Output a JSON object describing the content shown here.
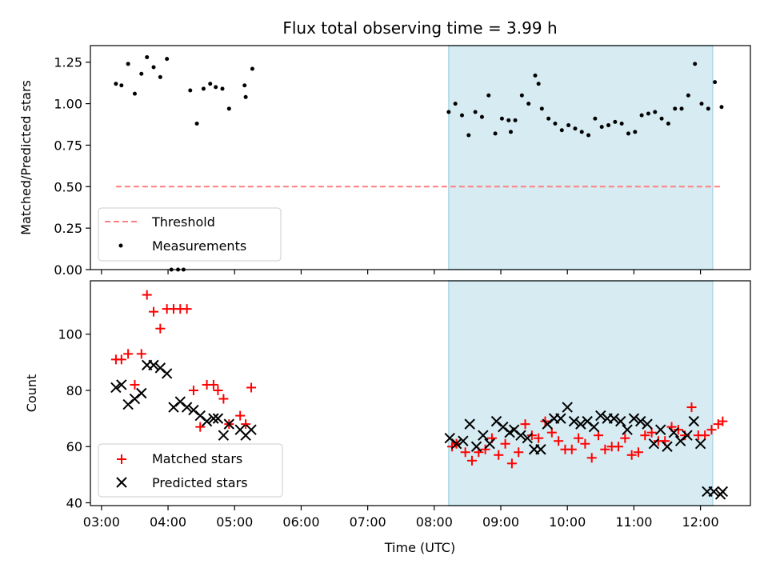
{
  "chart_data": [
    {
      "type": "scatter",
      "title": "Flux total observing time = 3.99 h",
      "xlabel": "",
      "ylabel": "Matched/Predicted stars",
      "xlim": [
        "02:50",
        "12:45"
      ],
      "ylim": [
        0,
        1.35
      ],
      "yticks": [
        "0.00",
        "0.25",
        "0.50",
        "0.75",
        "1.00",
        "1.25"
      ],
      "shaded_span": [
        "08:13",
        "12:11"
      ],
      "legend_position": "lower-left",
      "series": [
        {
          "name": "Threshold",
          "kind": "dashed-line",
          "color": "#ff7f7f",
          "x": [
            "03:13",
            "12:18"
          ],
          "y": [
            0.5,
            0.5
          ]
        },
        {
          "name": "Measurements",
          "kind": "dots",
          "color": "#000000",
          "x": [
            "03:13",
            "03:18",
            "03:24",
            "03:30",
            "03:36",
            "03:41",
            "03:47",
            "03:53",
            "03:59",
            "04:03",
            "04:09",
            "04:14",
            "04:20",
            "04:26",
            "04:32",
            "04:38",
            "04:43",
            "04:49",
            "04:55",
            "05:09",
            "05:10",
            "05:16",
            "08:13",
            "08:19",
            "08:25",
            "08:31",
            "08:37",
            "08:43",
            "08:49",
            "08:55",
            "09:01",
            "09:07",
            "09:09",
            "09:13",
            "09:19",
            "09:25",
            "09:31",
            "09:34",
            "09:37",
            "09:43",
            "09:49",
            "09:55",
            "10:01",
            "10:07",
            "10:13",
            "10:19",
            "10:25",
            "10:31",
            "10:37",
            "10:43",
            "10:49",
            "10:55",
            "11:01",
            "11:07",
            "11:13",
            "11:19",
            "11:25",
            "11:31",
            "11:37",
            "11:43",
            "11:49",
            "11:55",
            "12:01",
            "12:07",
            "12:13",
            "12:19"
          ],
          "y": [
            1.12,
            1.11,
            1.24,
            1.06,
            1.18,
            1.28,
            1.22,
            1.16,
            1.27,
            0.0,
            0.0,
            0.0,
            1.08,
            0.88,
            1.09,
            1.12,
            1.1,
            1.09,
            0.97,
            1.11,
            1.04,
            1.21,
            0.95,
            1.0,
            0.93,
            0.81,
            0.95,
            0.92,
            1.05,
            0.82,
            0.91,
            0.9,
            0.83,
            0.9,
            1.05,
            1.0,
            1.17,
            1.12,
            0.97,
            0.91,
            0.88,
            0.84,
            0.87,
            0.85,
            0.83,
            0.81,
            0.91,
            0.86,
            0.87,
            0.89,
            0.88,
            0.82,
            0.83,
            0.93,
            0.94,
            0.95,
            0.91,
            0.88,
            0.97,
            0.97,
            1.05,
            1.24,
            1.0,
            0.97,
            1.13,
            0.98
          ]
        }
      ]
    },
    {
      "type": "scatter",
      "title": "",
      "xlabel": "Time (UTC)",
      "ylabel": "Count",
      "xlim": [
        "02:50",
        "12:45"
      ],
      "ylim": [
        39,
        119
      ],
      "yticks": [
        "40",
        "60",
        "80",
        "100"
      ],
      "xticks": [
        "03:00",
        "04:00",
        "05:00",
        "06:00",
        "07:00",
        "08:00",
        "09:00",
        "10:00",
        "11:00",
        "12:00"
      ],
      "shaded_span": [
        "08:13",
        "12:11"
      ],
      "legend_position": "lower-left",
      "series": [
        {
          "name": "Matched stars",
          "kind": "plus",
          "color": "#ff0000",
          "x": [
            "03:13",
            "03:18",
            "03:24",
            "03:30",
            "03:36",
            "03:41",
            "03:47",
            "03:53",
            "03:59",
            "04:05",
            "04:11",
            "04:17",
            "04:23",
            "04:29",
            "04:35",
            "04:41",
            "04:45",
            "04:50",
            "04:55",
            "05:05",
            "05:10",
            "05:15",
            "08:16",
            "08:20",
            "08:28",
            "08:34",
            "08:40",
            "08:46",
            "08:52",
            "08:58",
            "09:04",
            "09:10",
            "09:16",
            "09:22",
            "09:28",
            "09:34",
            "09:40",
            "09:46",
            "09:52",
            "09:58",
            "10:04",
            "10:10",
            "10:16",
            "10:22",
            "10:28",
            "10:34",
            "10:40",
            "10:46",
            "10:52",
            "10:58",
            "11:04",
            "11:10",
            "11:16",
            "11:22",
            "11:28",
            "11:34",
            "11:40",
            "11:46",
            "11:52",
            "11:58",
            "12:04",
            "12:10",
            "12:16",
            "12:20"
          ],
          "y": [
            91,
            91,
            93,
            82,
            93,
            114,
            108,
            102,
            109,
            109,
            109,
            109,
            80,
            67,
            82,
            82,
            80,
            77,
            68,
            71,
            68,
            81,
            60,
            61,
            58,
            55,
            58,
            59,
            63,
            57,
            61,
            54,
            58,
            68,
            64,
            63,
            69,
            65,
            62,
            59,
            59,
            63,
            61,
            56,
            64,
            59,
            60,
            60,
            63,
            57,
            58,
            64,
            65,
            62,
            62,
            67,
            66,
            64,
            74,
            64,
            64,
            66,
            68,
            69
          ]
        },
        {
          "name": "Predicted stars",
          "kind": "x",
          "color": "#000000",
          "x": [
            "03:13",
            "03:18",
            "03:24",
            "03:30",
            "03:36",
            "03:41",
            "03:47",
            "03:53",
            "03:59",
            "04:05",
            "04:11",
            "04:17",
            "04:23",
            "04:29",
            "04:35",
            "04:41",
            "04:45",
            "04:50",
            "04:55",
            "05:05",
            "05:10",
            "05:15",
            "08:14",
            "08:20",
            "08:26",
            "08:32",
            "08:38",
            "08:44",
            "08:50",
            "08:56",
            "09:02",
            "09:08",
            "09:12",
            "09:18",
            "09:24",
            "09:30",
            "09:36",
            "09:42",
            "09:48",
            "09:54",
            "10:00",
            "10:06",
            "10:12",
            "10:18",
            "10:24",
            "10:30",
            "10:36",
            "10:42",
            "10:48",
            "10:54",
            "11:00",
            "11:06",
            "11:12",
            "11:18",
            "11:24",
            "11:30",
            "11:36",
            "11:42",
            "11:48",
            "11:54",
            "12:00",
            "12:06",
            "12:12",
            "12:18",
            "12:20"
          ],
          "y": [
            81,
            82,
            75,
            77,
            79,
            89,
            89,
            88,
            86,
            74,
            76,
            74,
            73,
            71,
            69,
            70,
            70,
            64,
            68,
            66,
            64,
            66,
            63,
            61,
            62,
            68,
            60,
            64,
            61,
            69,
            67,
            65,
            66,
            64,
            63,
            59,
            59,
            68,
            70,
            70,
            74,
            69,
            68,
            69,
            67,
            71,
            70,
            70,
            69,
            66,
            70,
            69,
            68,
            61,
            66,
            60,
            65,
            62,
            64,
            69,
            61,
            44,
            44,
            43,
            44
          ]
        }
      ]
    }
  ]
}
